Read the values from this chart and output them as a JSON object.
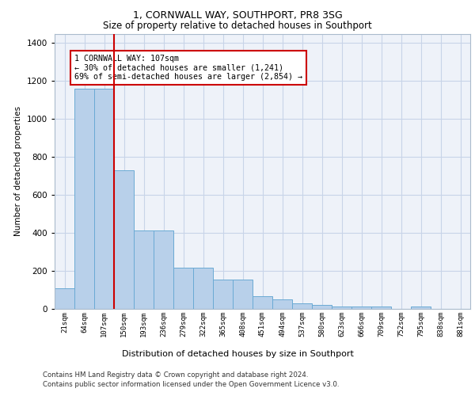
{
  "title_line1": "1, CORNWALL WAY, SOUTHPORT, PR8 3SG",
  "title_line2": "Size of property relative to detached houses in Southport",
  "xlabel": "Distribution of detached houses by size in Southport",
  "ylabel": "Number of detached properties",
  "categories": [
    "21sqm",
    "64sqm",
    "107sqm",
    "150sqm",
    "193sqm",
    "236sqm",
    "279sqm",
    "322sqm",
    "365sqm",
    "408sqm",
    "451sqm",
    "494sqm",
    "537sqm",
    "580sqm",
    "623sqm",
    "666sqm",
    "709sqm",
    "752sqm",
    "795sqm",
    "838sqm",
    "881sqm"
  ],
  "values": [
    107,
    1160,
    1160,
    730,
    415,
    415,
    215,
    215,
    155,
    155,
    65,
    48,
    30,
    20,
    13,
    13,
    13,
    0,
    13,
    0,
    0
  ],
  "bar_color": "#b8d0ea",
  "bar_edgecolor": "#6aaad4",
  "highlight_index": 2,
  "highlight_color": "#cc0000",
  "annotation_text": "1 CORNWALL WAY: 107sqm\n← 30% of detached houses are smaller (1,241)\n69% of semi-detached houses are larger (2,854) →",
  "annotation_box_edgecolor": "#cc0000",
  "ylim": [
    0,
    1450
  ],
  "yticks": [
    0,
    200,
    400,
    600,
    800,
    1000,
    1200,
    1400
  ],
  "footer_line1": "Contains HM Land Registry data © Crown copyright and database right 2024.",
  "footer_line2": "Contains public sector information licensed under the Open Government Licence v3.0.",
  "background_color": "#ffffff",
  "grid_color": "#c8d4e8",
  "axes_bg": "#eef2f9"
}
